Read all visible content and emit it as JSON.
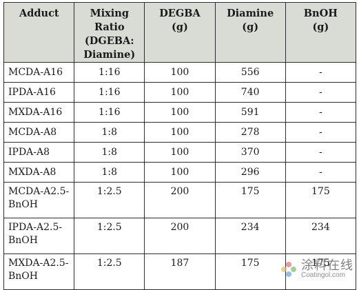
{
  "table": {
    "headers": [
      [
        "Adduct"
      ],
      [
        "Mixing Ratio",
        "(DGEBA:",
        "Diamine)"
      ],
      [
        "DEGBA",
        "(g)"
      ],
      [
        "Diamine",
        "(g)"
      ],
      [
        "BnOH",
        "(g)"
      ]
    ],
    "rows": [
      {
        "adduct": [
          "MCDA-A16"
        ],
        "ratio": "1:16",
        "degba": "100",
        "diamine": "556",
        "bnoh": "-"
      },
      {
        "adduct": [
          "IPDA-A16"
        ],
        "ratio": "1:16",
        "degba": "100",
        "diamine": "740",
        "bnoh": "-"
      },
      {
        "adduct": [
          "MXDA-A16"
        ],
        "ratio": "1:16",
        "degba": "100",
        "diamine": "591",
        "bnoh": "-"
      },
      {
        "adduct": [
          "MCDA-A8"
        ],
        "ratio": "1:8",
        "degba": "100",
        "diamine": "278",
        "bnoh": "-"
      },
      {
        "adduct": [
          "IPDA-A8"
        ],
        "ratio": "1:8",
        "degba": "100",
        "diamine": "370",
        "bnoh": "-"
      },
      {
        "adduct": [
          "MXDA-A8"
        ],
        "ratio": "1:8",
        "degba": "100",
        "diamine": "296",
        "bnoh": "-"
      },
      {
        "adduct": [
          "MCDA-A2.5-",
          "BnOH"
        ],
        "ratio": "1:2.5",
        "degba": "200",
        "diamine": "175",
        "bnoh": "175"
      },
      {
        "adduct": [
          "IPDA-A2.5-",
          "BnOH"
        ],
        "ratio": "1:2.5",
        "degba": "200",
        "diamine": "234",
        "bnoh": "234"
      },
      {
        "adduct": [
          "MXDA-A2.5-",
          "BnOH"
        ],
        "ratio": "1:2.5",
        "degba": "187",
        "diamine": "175",
        "bnoh": "175"
      }
    ]
  },
  "watermark": {
    "cn": "涂料在线",
    "en": "Coatingol.com"
  }
}
